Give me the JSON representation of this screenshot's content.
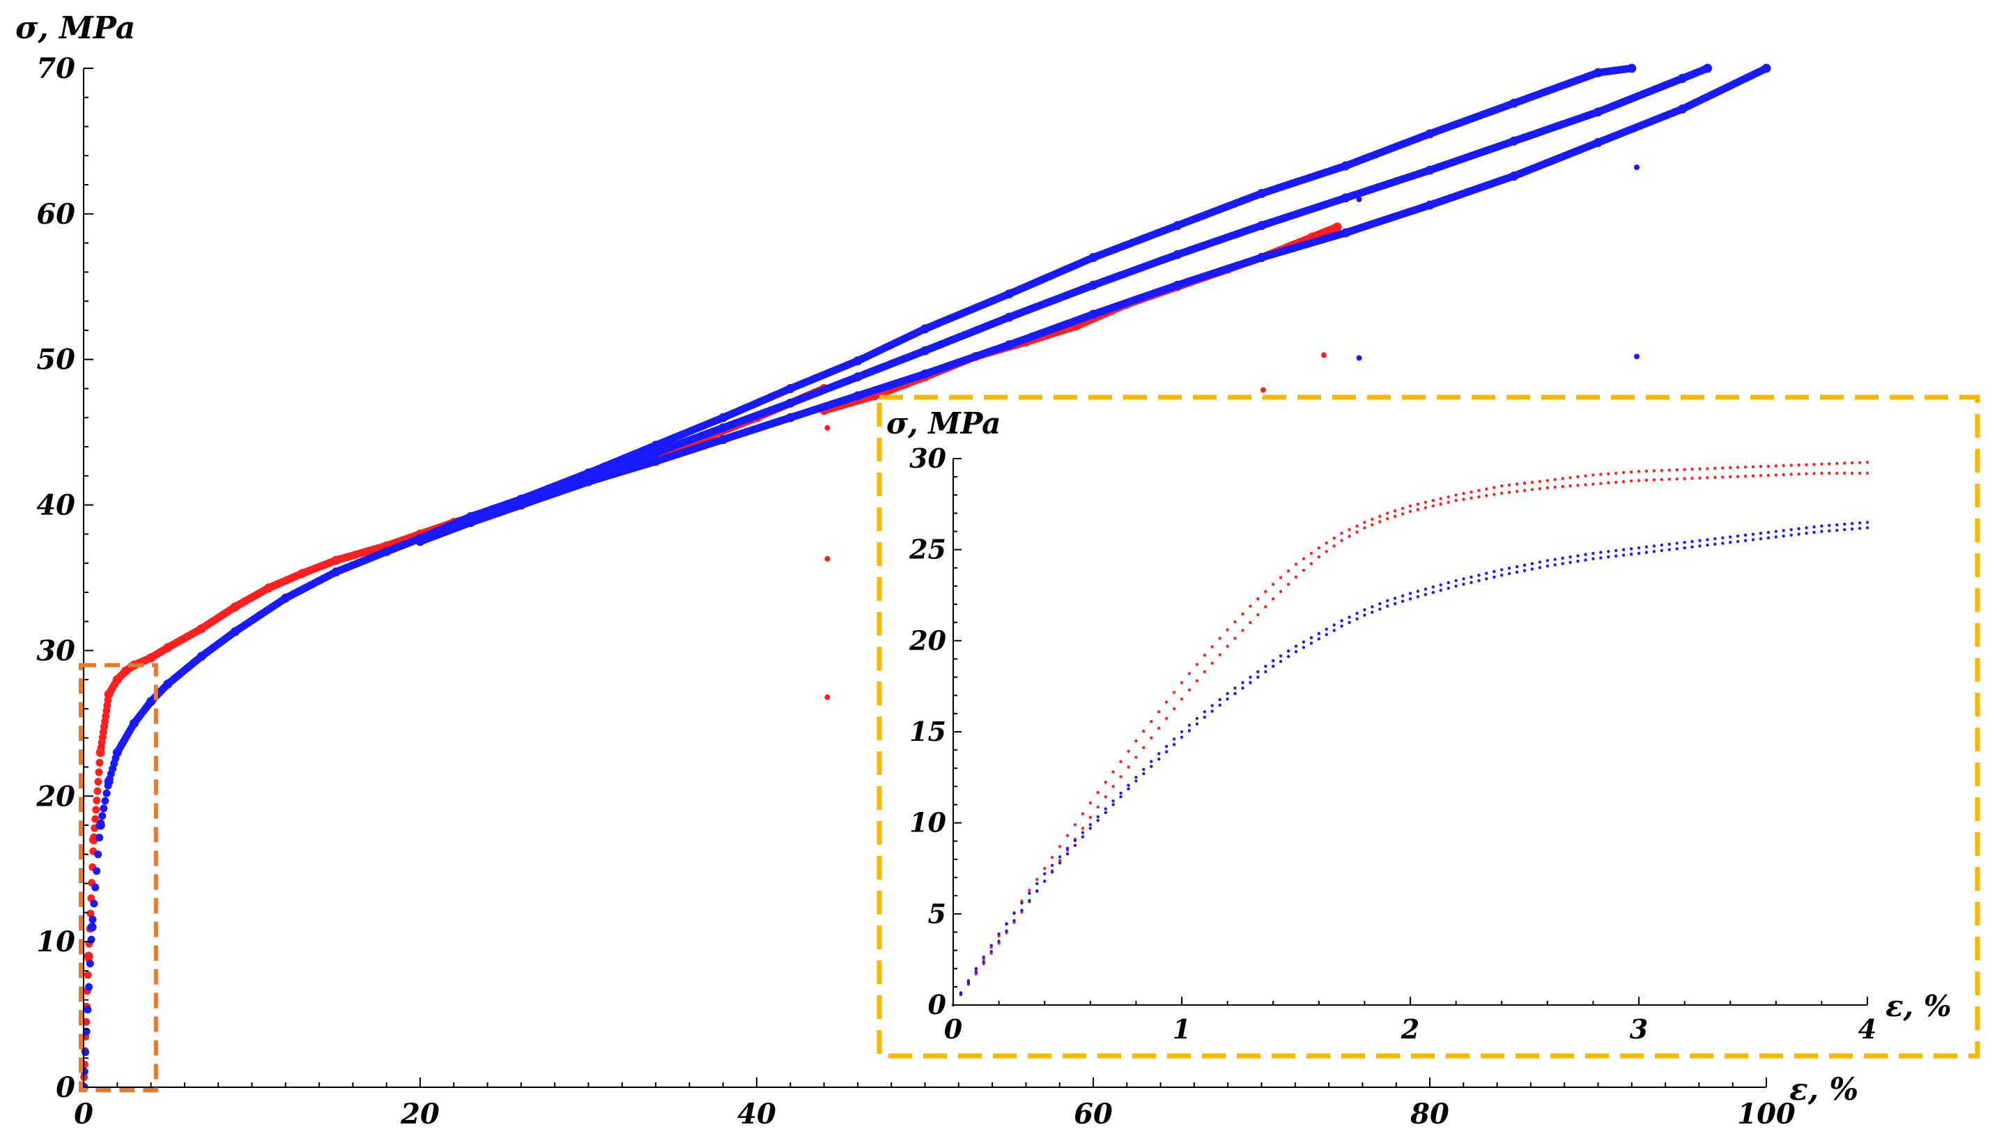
{
  "colors": {
    "series_red": "#ff2020",
    "series_blue": "#1a1aff",
    "zoom_box": "#e87a2e",
    "inset_frame": "#f5b800",
    "axis": "#000000"
  },
  "chart_data": [
    {
      "id": "main",
      "type": "scatter",
      "xlabel": "ε, %",
      "ylabel": "σ, MPa",
      "xlim": [
        0,
        100
      ],
      "ylim": [
        0,
        70
      ],
      "xticks": [
        0,
        20,
        40,
        60,
        80,
        100
      ],
      "yticks": [
        0,
        10,
        20,
        30,
        40,
        50,
        60,
        70
      ],
      "grid": false,
      "legend": "none",
      "zoom_region": {
        "x": [
          0,
          4.3
        ],
        "y": [
          0,
          29
        ]
      },
      "series": [
        {
          "color": "red",
          "x": [
            0,
            0.3,
            0.6,
            1.0,
            1.5,
            2.0,
            2.5,
            3.0,
            4.0,
            5.0,
            7.0,
            9.0,
            11,
            13,
            15,
            18,
            20,
            22,
            25,
            28,
            30,
            33,
            36,
            40,
            44
          ],
          "y": [
            0,
            9,
            17,
            23,
            27,
            28,
            28.6,
            29,
            29.5,
            30.2,
            31.5,
            33,
            34.3,
            35.3,
            36.2,
            37.2,
            38,
            38.8,
            39.8,
            41,
            41.9,
            43,
            44.2,
            46,
            48
          ]
        },
        {
          "color": "red",
          "x": [
            44,
            47,
            50,
            53,
            56,
            59,
            62,
            65,
            68,
            70,
            73,
            74.5
          ],
          "y": [
            46.5,
            47.5,
            48.8,
            50.2,
            51.2,
            52.3,
            53.8,
            55,
            56.2,
            57,
            58.4,
            59.1
          ]
        },
        {
          "color": "blue",
          "x": [
            0,
            0.5,
            1.0,
            1.5,
            2.0,
            3.0,
            4.0,
            5.0,
            7.0,
            9.0,
            12,
            15,
            18,
            20,
            23,
            26,
            30,
            34,
            38,
            42,
            46,
            50,
            55,
            60,
            65,
            70,
            75,
            80,
            85,
            90,
            92
          ],
          "y": [
            0,
            11,
            18,
            21,
            23,
            25,
            26.5,
            27.7,
            29.6,
            31.3,
            33.6,
            35.4,
            36.8,
            37.7,
            39.2,
            40.4,
            42.2,
            44.1,
            46,
            48,
            49.9,
            52.1,
            54.5,
            57,
            59.2,
            61.4,
            63.3,
            65.5,
            67.6,
            69.7,
            70
          ]
        },
        {
          "color": "blue",
          "x": [
            20,
            23,
            26,
            30,
            34,
            38,
            42,
            46,
            50,
            55,
            60,
            65,
            70,
            75,
            80,
            85,
            90,
            95,
            96.5
          ],
          "y": [
            37.6,
            39,
            40.2,
            41.9,
            43.6,
            45.3,
            47,
            48.8,
            50.6,
            52.9,
            55.1,
            57.2,
            59.2,
            61.1,
            63,
            65,
            67,
            69.3,
            70
          ]
        },
        {
          "color": "blue",
          "x": [
            20,
            23,
            26,
            30,
            34,
            38,
            42,
            46,
            50,
            55,
            60,
            65,
            70,
            75,
            80,
            85,
            90,
            95,
            100
          ],
          "y": [
            37.5,
            38.8,
            40,
            41.6,
            43,
            44.5,
            46,
            47.5,
            49,
            51,
            53.1,
            55.1,
            57,
            58.7,
            60.6,
            62.6,
            64.9,
            67.2,
            70
          ]
        }
      ],
      "outliers": [
        {
          "x": 44.2,
          "y": 45.3,
          "color": "red"
        },
        {
          "x": 44.2,
          "y": 36.3,
          "color": "red"
        },
        {
          "x": 44.2,
          "y": 26.8,
          "color": "red"
        },
        {
          "x": 70.1,
          "y": 47.9,
          "color": "red"
        },
        {
          "x": 73.7,
          "y": 50.3,
          "color": "red"
        },
        {
          "x": 75.8,
          "y": 50.1,
          "color": "blue"
        },
        {
          "x": 75.8,
          "y": 61.0,
          "color": "blue"
        },
        {
          "x": 92.3,
          "y": 50.2,
          "color": "blue"
        },
        {
          "x": 92.3,
          "y": 63.2,
          "color": "blue"
        }
      ]
    },
    {
      "id": "inset",
      "type": "scatter",
      "xlabel": "ε, %",
      "ylabel": "σ, MPa",
      "xlim": [
        0,
        4
      ],
      "ylim": [
        0,
        30
      ],
      "xticks": [
        0,
        1,
        2,
        3,
        4
      ],
      "yticks": [
        0,
        5,
        10,
        15,
        20,
        25,
        30
      ],
      "grid": false,
      "legend": "none",
      "series": [
        {
          "color": "red",
          "x": [
            0,
            0.1,
            0.2,
            0.3,
            0.4,
            0.5,
            0.6,
            0.7,
            0.8,
            0.9,
            1.0,
            1.1,
            1.2,
            1.3,
            1.4,
            1.5,
            1.6,
            1.7,
            1.8,
            1.9,
            2.0,
            2.2,
            2.4,
            2.6,
            2.8,
            3.0,
            3.2,
            3.4,
            3.6,
            3.8,
            4.0
          ],
          "y": [
            0,
            1.7,
            3.4,
            5.1,
            6.8,
            8.5,
            10.3,
            12,
            13.6,
            15.2,
            16.8,
            18.3,
            19.7,
            21,
            22.3,
            23.5,
            24.6,
            25.5,
            26.2,
            26.7,
            27.1,
            27.7,
            28.1,
            28.4,
            28.6,
            28.8,
            28.9,
            29.0,
            29.1,
            29.2,
            29.2
          ]
        },
        {
          "color": "red",
          "x": [
            0,
            0.1,
            0.2,
            0.3,
            0.4,
            0.5,
            0.6,
            0.7,
            0.8,
            0.9,
            1.0,
            1.1,
            1.2,
            1.3,
            1.4,
            1.5,
            1.6,
            1.7,
            1.8,
            1.9,
            2.0,
            2.2,
            2.4,
            2.6,
            2.8,
            3.0,
            3.2,
            3.4,
            3.6,
            3.8,
            4.0
          ],
          "y": [
            0,
            1.9,
            3.8,
            5.7,
            7.5,
            9.3,
            11.1,
            12.8,
            14.5,
            16.1,
            17.7,
            19.2,
            20.6,
            21.9,
            23.1,
            24.2,
            25.1,
            25.9,
            26.5,
            27.0,
            27.4,
            28.0,
            28.5,
            28.8,
            29.1,
            29.3,
            29.4,
            29.5,
            29.6,
            29.7,
            29.8
          ]
        },
        {
          "color": "blue",
          "x": [
            0,
            0.1,
            0.2,
            0.3,
            0.4,
            0.5,
            0.6,
            0.7,
            0.8,
            0.9,
            1.0,
            1.1,
            1.2,
            1.3,
            1.4,
            1.5,
            1.6,
            1.7,
            1.8,
            1.9,
            2.0,
            2.2,
            2.4,
            2.6,
            2.8,
            3.0,
            3.2,
            3.4,
            3.6,
            3.8,
            4.0
          ],
          "y": [
            0,
            1.8,
            3.5,
            5.2,
            6.8,
            8.3,
            9.7,
            11,
            12.3,
            13.5,
            14.7,
            15.8,
            16.8,
            17.7,
            18.6,
            19.4,
            20.1,
            20.8,
            21.4,
            21.9,
            22.3,
            23.0,
            23.6,
            24.1,
            24.5,
            24.8,
            25.1,
            25.4,
            25.7,
            26.0,
            26.2
          ]
        },
        {
          "color": "blue",
          "x": [
            0,
            0.1,
            0.2,
            0.3,
            0.4,
            0.5,
            0.6,
            0.7,
            0.8,
            0.9,
            1.0,
            1.1,
            1.2,
            1.3,
            1.4,
            1.5,
            1.6,
            1.7,
            1.8,
            1.9,
            2.0,
            2.2,
            2.4,
            2.6,
            2.8,
            3.0,
            3.2,
            3.4,
            3.6,
            3.8,
            4.0
          ],
          "y": [
            0,
            2.0,
            3.9,
            5.6,
            7.2,
            8.6,
            9.9,
            11.2,
            12.5,
            13.8,
            15.0,
            16.1,
            17.1,
            18.0,
            18.9,
            19.7,
            20.4,
            21.1,
            21.7,
            22.2,
            22.6,
            23.3,
            23.9,
            24.4,
            24.8,
            25.1,
            25.4,
            25.7,
            26.0,
            26.3,
            26.5
          ]
        }
      ]
    }
  ]
}
